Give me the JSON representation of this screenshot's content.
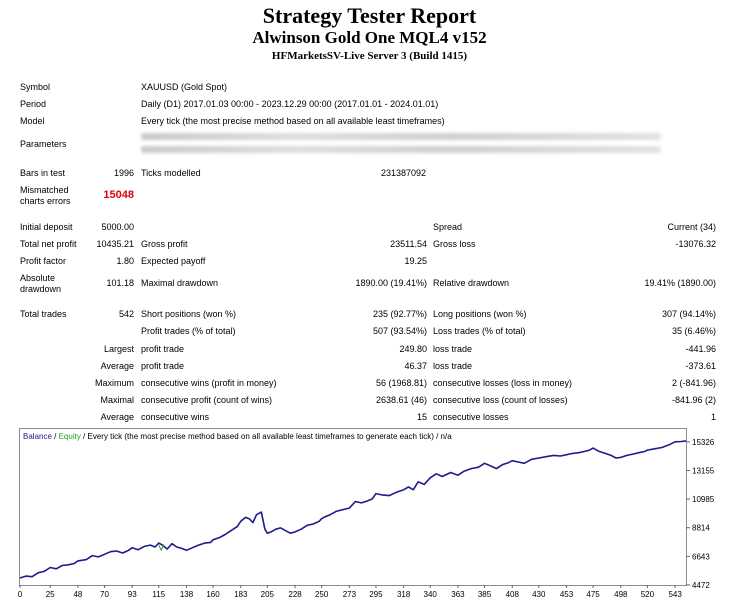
{
  "report": {
    "title": "Strategy Tester Report",
    "subtitle": "Alwinson Gold One MQL4 v152",
    "server": "HFMarketsSV-Live Server 3 (Build 1415)"
  },
  "info": {
    "symbol_label": "Symbol",
    "symbol_value": "XAUUSD (Gold Spot)",
    "period_label": "Period",
    "period_value": "Daily (D1) 2017.01.03 00:00 - 2023.12.29 00:00 (2017.01.01 - 2024.01.01)",
    "model_label": "Model",
    "model_value": "Every tick (the most precise method based on all available least timeframes)",
    "parameters_label": "Parameters",
    "bars_label": "Bars in test",
    "bars_value": "1996",
    "ticks_label": "Ticks modelled",
    "ticks_value": "231387092",
    "mismatched_label_1": "Mismatched",
    "mismatched_label_2": "charts errors",
    "mismatched_value": "15048"
  },
  "stats": {
    "initial_deposit_label": "Initial deposit",
    "initial_deposit": "5000.00",
    "spread_label": "Spread",
    "spread_value": "Current (34)",
    "net_profit_label": "Total net profit",
    "net_profit": "10435.21",
    "gross_profit_label": "Gross profit",
    "gross_profit": "23511.54",
    "gross_loss_label": "Gross loss",
    "gross_loss": "-13076.32",
    "profit_factor_label": "Profit factor",
    "profit_factor": "1.80",
    "expected_payoff_label": "Expected payoff",
    "expected_payoff": "19.25",
    "abs_dd_label_1": "Absolute",
    "abs_dd_label_2": "drawdown",
    "abs_dd": "101.18",
    "max_dd_label": "Maximal drawdown",
    "max_dd": "1890.00 (19.41%)",
    "rel_dd_label": "Relative drawdown",
    "rel_dd": "19.41% (1890.00)",
    "total_trades_label": "Total trades",
    "total_trades": "542",
    "short_label": "Short positions (won %)",
    "short_value": "235 (92.77%)",
    "long_label": "Long positions (won %)",
    "long_value": "307 (94.14%)",
    "profit_trades_label": "Profit trades (% of total)",
    "profit_trades": "507 (93.54%)",
    "loss_trades_label": "Loss trades (% of total)",
    "loss_trades": "35 (6.46%)",
    "largest_label": "Largest",
    "largest_profit_label": "profit trade",
    "largest_profit": "249.80",
    "largest_loss_label": "loss trade",
    "largest_loss": "-441.96",
    "average_label": "Average",
    "average_profit_label": "profit trade",
    "average_profit": "46.37",
    "average_loss_label": "loss trade",
    "average_loss": "-373.61",
    "maximum_label": "Maximum",
    "max_cons_wins_label": "consecutive wins (profit in money)",
    "max_cons_wins": "56 (1968.81)",
    "max_cons_losses_label": "consecutive losses (loss in money)",
    "max_cons_losses": "2 (-841.96)",
    "maximal_label": "Maximal",
    "maximal_cons_profit_label": "consecutive profit (count of wins)",
    "maximal_cons_profit": "2638.61 (46)",
    "maximal_cons_loss_label": "consecutive loss (count of losses)",
    "maximal_cons_loss": "-841.96 (2)",
    "average2_label": "Average",
    "avg_cons_wins_label": "consecutive wins",
    "avg_cons_wins": "15",
    "avg_cons_losses_label": "consecutive losses",
    "avg_cons_losses": "1"
  },
  "chart_legend": {
    "balance": "Balance",
    "sep": " / ",
    "equity": "Equity",
    "rest": " / Every tick (the most precise method based on all available least timeframes to generate each tick) / n/a"
  },
  "chart_data": {
    "type": "line",
    "xlabel": "",
    "ylabel": "",
    "x_ticks": [
      0,
      25,
      48,
      70,
      93,
      115,
      138,
      160,
      183,
      205,
      228,
      250,
      273,
      295,
      318,
      340,
      363,
      385,
      408,
      430,
      453,
      475,
      498,
      520,
      543
    ],
    "y_ticks": [
      "4472",
      "6643",
      "8814",
      "10985",
      "13155",
      "15326"
    ],
    "xlim": [
      0,
      552
    ],
    "ylim": [
      4472,
      16300
    ],
    "series": [
      {
        "name": "Balance",
        "color": "#1c1c8c",
        "x": [
          0,
          5,
          10,
          15,
          20,
          25,
          30,
          35,
          40,
          45,
          48,
          55,
          60,
          65,
          70,
          75,
          80,
          85,
          90,
          93,
          98,
          103,
          108,
          112,
          115,
          118,
          122,
          126,
          130,
          134,
          138,
          143,
          148,
          153,
          158,
          160,
          165,
          170,
          175,
          180,
          183,
          187,
          190,
          193,
          196,
          200,
          203,
          205,
          208,
          212,
          216,
          220,
          224,
          228,
          233,
          238,
          243,
          248,
          250,
          253,
          257,
          262,
          268,
          273,
          278,
          283,
          288,
          292,
          295,
          300,
          306,
          312,
          318,
          322,
          326,
          330,
          335,
          340,
          345,
          350,
          357,
          363,
          368,
          374,
          380,
          385,
          390,
          395,
          400,
          405,
          408,
          413,
          418,
          424,
          430,
          436,
          442,
          448,
          453,
          458,
          463,
          468,
          472,
          475,
          480,
          485,
          490,
          494,
          498,
          503,
          508,
          513,
          518,
          520,
          526,
          532,
          538,
          543,
          548,
          552
        ],
        "y": [
          5000,
          5150,
          5100,
          5400,
          5500,
          5800,
          5700,
          5950,
          6000,
          6100,
          6300,
          6400,
          6700,
          6600,
          6800,
          7000,
          7050,
          6900,
          7100,
          7300,
          7150,
          7400,
          7500,
          7350,
          7650,
          7500,
          7200,
          7600,
          7350,
          7250,
          7100,
          7300,
          7500,
          7650,
          7700,
          7900,
          8050,
          8300,
          8600,
          8900,
          9300,
          9600,
          9500,
          9200,
          9800,
          10000,
          8700,
          8400,
          8500,
          8700,
          8800,
          8600,
          8400,
          8500,
          8700,
          9000,
          9100,
          9300,
          9500,
          9650,
          9800,
          10050,
          10200,
          10300,
          10800,
          10700,
          10850,
          11000,
          11400,
          11300,
          11250,
          11500,
          11700,
          11900,
          11700,
          12300,
          12100,
          12600,
          12900,
          12700,
          13000,
          12800,
          13100,
          13300,
          13400,
          13700,
          13500,
          13300,
          13600,
          13750,
          13900,
          13800,
          13700,
          14000,
          14100,
          14200,
          14300,
          14250,
          14350,
          14450,
          14500,
          14600,
          14700,
          14850,
          14600,
          14450,
          14300,
          14100,
          14150,
          14300,
          14400,
          14500,
          14600,
          14700,
          14800,
          14900,
          15100,
          15326,
          15350,
          15400
        ]
      },
      {
        "name": "Equity",
        "color": "#2e9e2e",
        "x": [
          115,
          117,
          119
        ],
        "y": [
          7500,
          7100,
          7550
        ]
      }
    ]
  }
}
